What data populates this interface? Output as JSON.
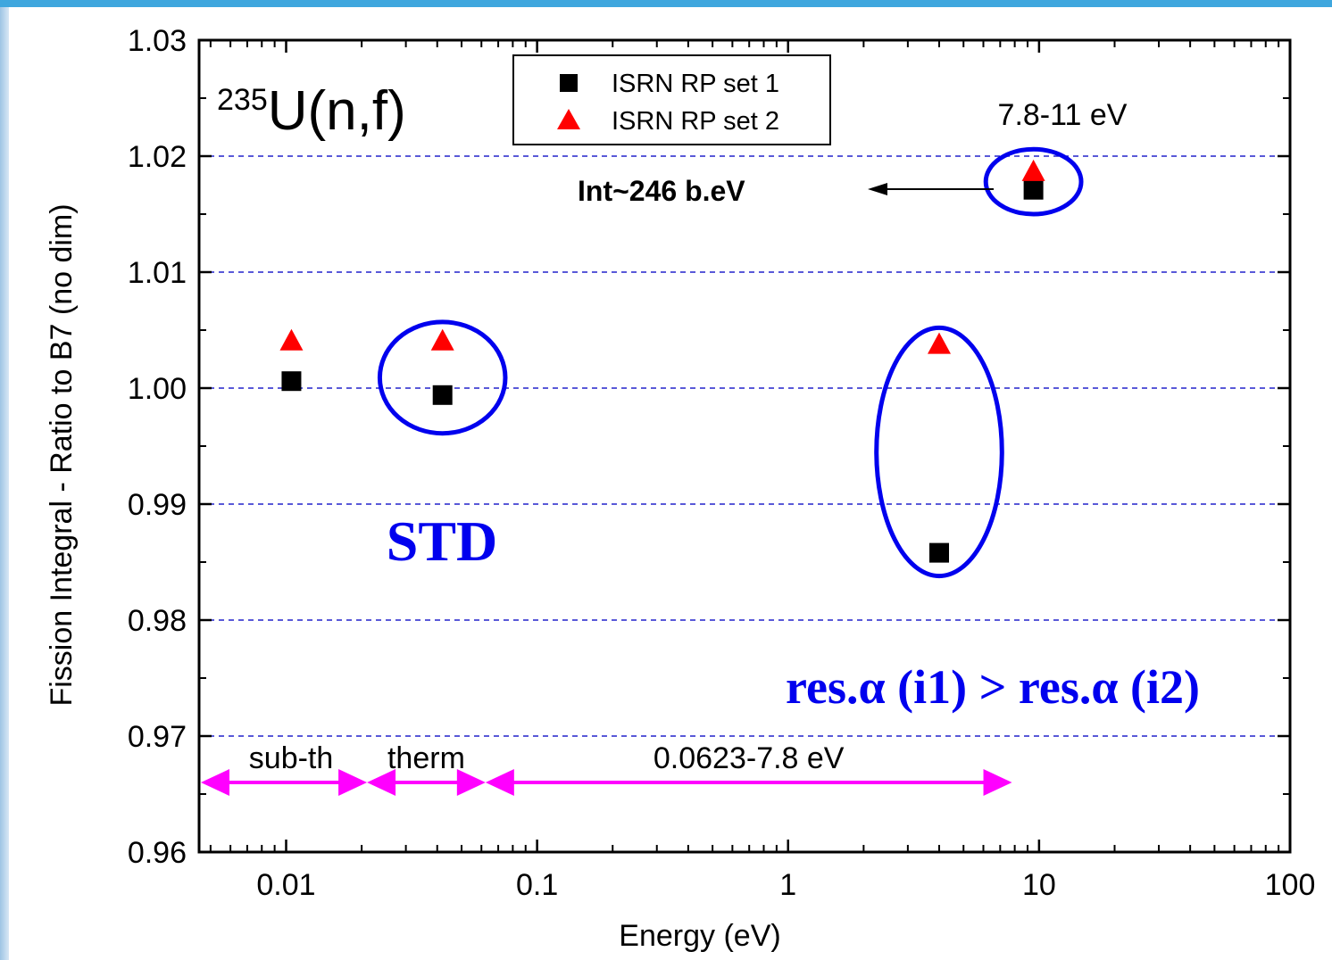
{
  "chart_data": {
    "type": "scatter",
    "title": "",
    "xlabel": "Energy (eV)",
    "ylabel": "Fission Integral - Ratio to B7 (no dim)",
    "x_scale": "log",
    "xlim": [
      0.0045,
      100
    ],
    "ylim": [
      0.96,
      1.03
    ],
    "x_ticks": [
      {
        "value": 0.01,
        "label": "0.01"
      },
      {
        "value": 0.1,
        "label": "0.1"
      },
      {
        "value": 1,
        "label": "1"
      },
      {
        "value": 10,
        "label": "10"
      },
      {
        "value": 100,
        "label": "100"
      }
    ],
    "y_ticks": [
      {
        "value": 0.96,
        "label": "0.96"
      },
      {
        "value": 0.97,
        "label": "0.97"
      },
      {
        "value": 0.98,
        "label": "0.98"
      },
      {
        "value": 0.99,
        "label": "0.99"
      },
      {
        "value": 1.0,
        "label": "1.00"
      },
      {
        "value": 1.01,
        "label": "1.01"
      },
      {
        "value": 1.02,
        "label": "1.02"
      },
      {
        "value": 1.03,
        "label": "1.03"
      }
    ],
    "gridlines_y": [
      0.97,
      0.98,
      0.99,
      1.0,
      1.01,
      1.02
    ],
    "grid_color": "#2222cc",
    "legend_position": "top-center",
    "series": [
      {
        "name": "ISRN RP set 1",
        "marker": "square",
        "color": "#000000",
        "points": [
          {
            "x": 0.0105,
            "y": 1.0006
          },
          {
            "x": 0.042,
            "y": 0.9994
          },
          {
            "x": 4.0,
            "y": 0.9858
          },
          {
            "x": 9.5,
            "y": 1.0171
          }
        ]
      },
      {
        "name": "ISRN RP set 2",
        "marker": "triangle",
        "color": "#ff0000",
        "points": [
          {
            "x": 0.0105,
            "y": 1.0041
          },
          {
            "x": 0.042,
            "y": 1.0041
          },
          {
            "x": 4.0,
            "y": 1.0038
          },
          {
            "x": 9.5,
            "y": 1.0187
          }
        ]
      }
    ],
    "annotations": {
      "nuclide_mass": "235",
      "nuclide_reaction": "U(n,f)",
      "range_label": "7.8-11 eV",
      "integral_label": "Int~246 b.eV",
      "std_label": "STD",
      "res_label": "res.α (i1) > res.α (i2)",
      "ellipse_color": "#0000ee",
      "arrow_color": "#ff00ff",
      "ellipses": [
        {
          "x": 9.5,
          "y": 1.0178,
          "rx_decades": 0.19,
          "ry": 0.0028
        },
        {
          "x": 0.042,
          "y": 1.0009,
          "rx_decades": 0.25,
          "ry": 0.0048
        },
        {
          "x": 4.0,
          "y": 0.9945,
          "rx_decades": 0.25,
          "ry": 0.0107
        }
      ],
      "ranges": [
        {
          "label": "sub-th",
          "from": 0.0045,
          "to": 0.021
        },
        {
          "label": "therm",
          "from": 0.021,
          "to": 0.0623
        },
        {
          "label": "0.0623-7.8 eV",
          "from": 0.0623,
          "to": 7.8
        }
      ],
      "range_y": 0.966
    }
  }
}
